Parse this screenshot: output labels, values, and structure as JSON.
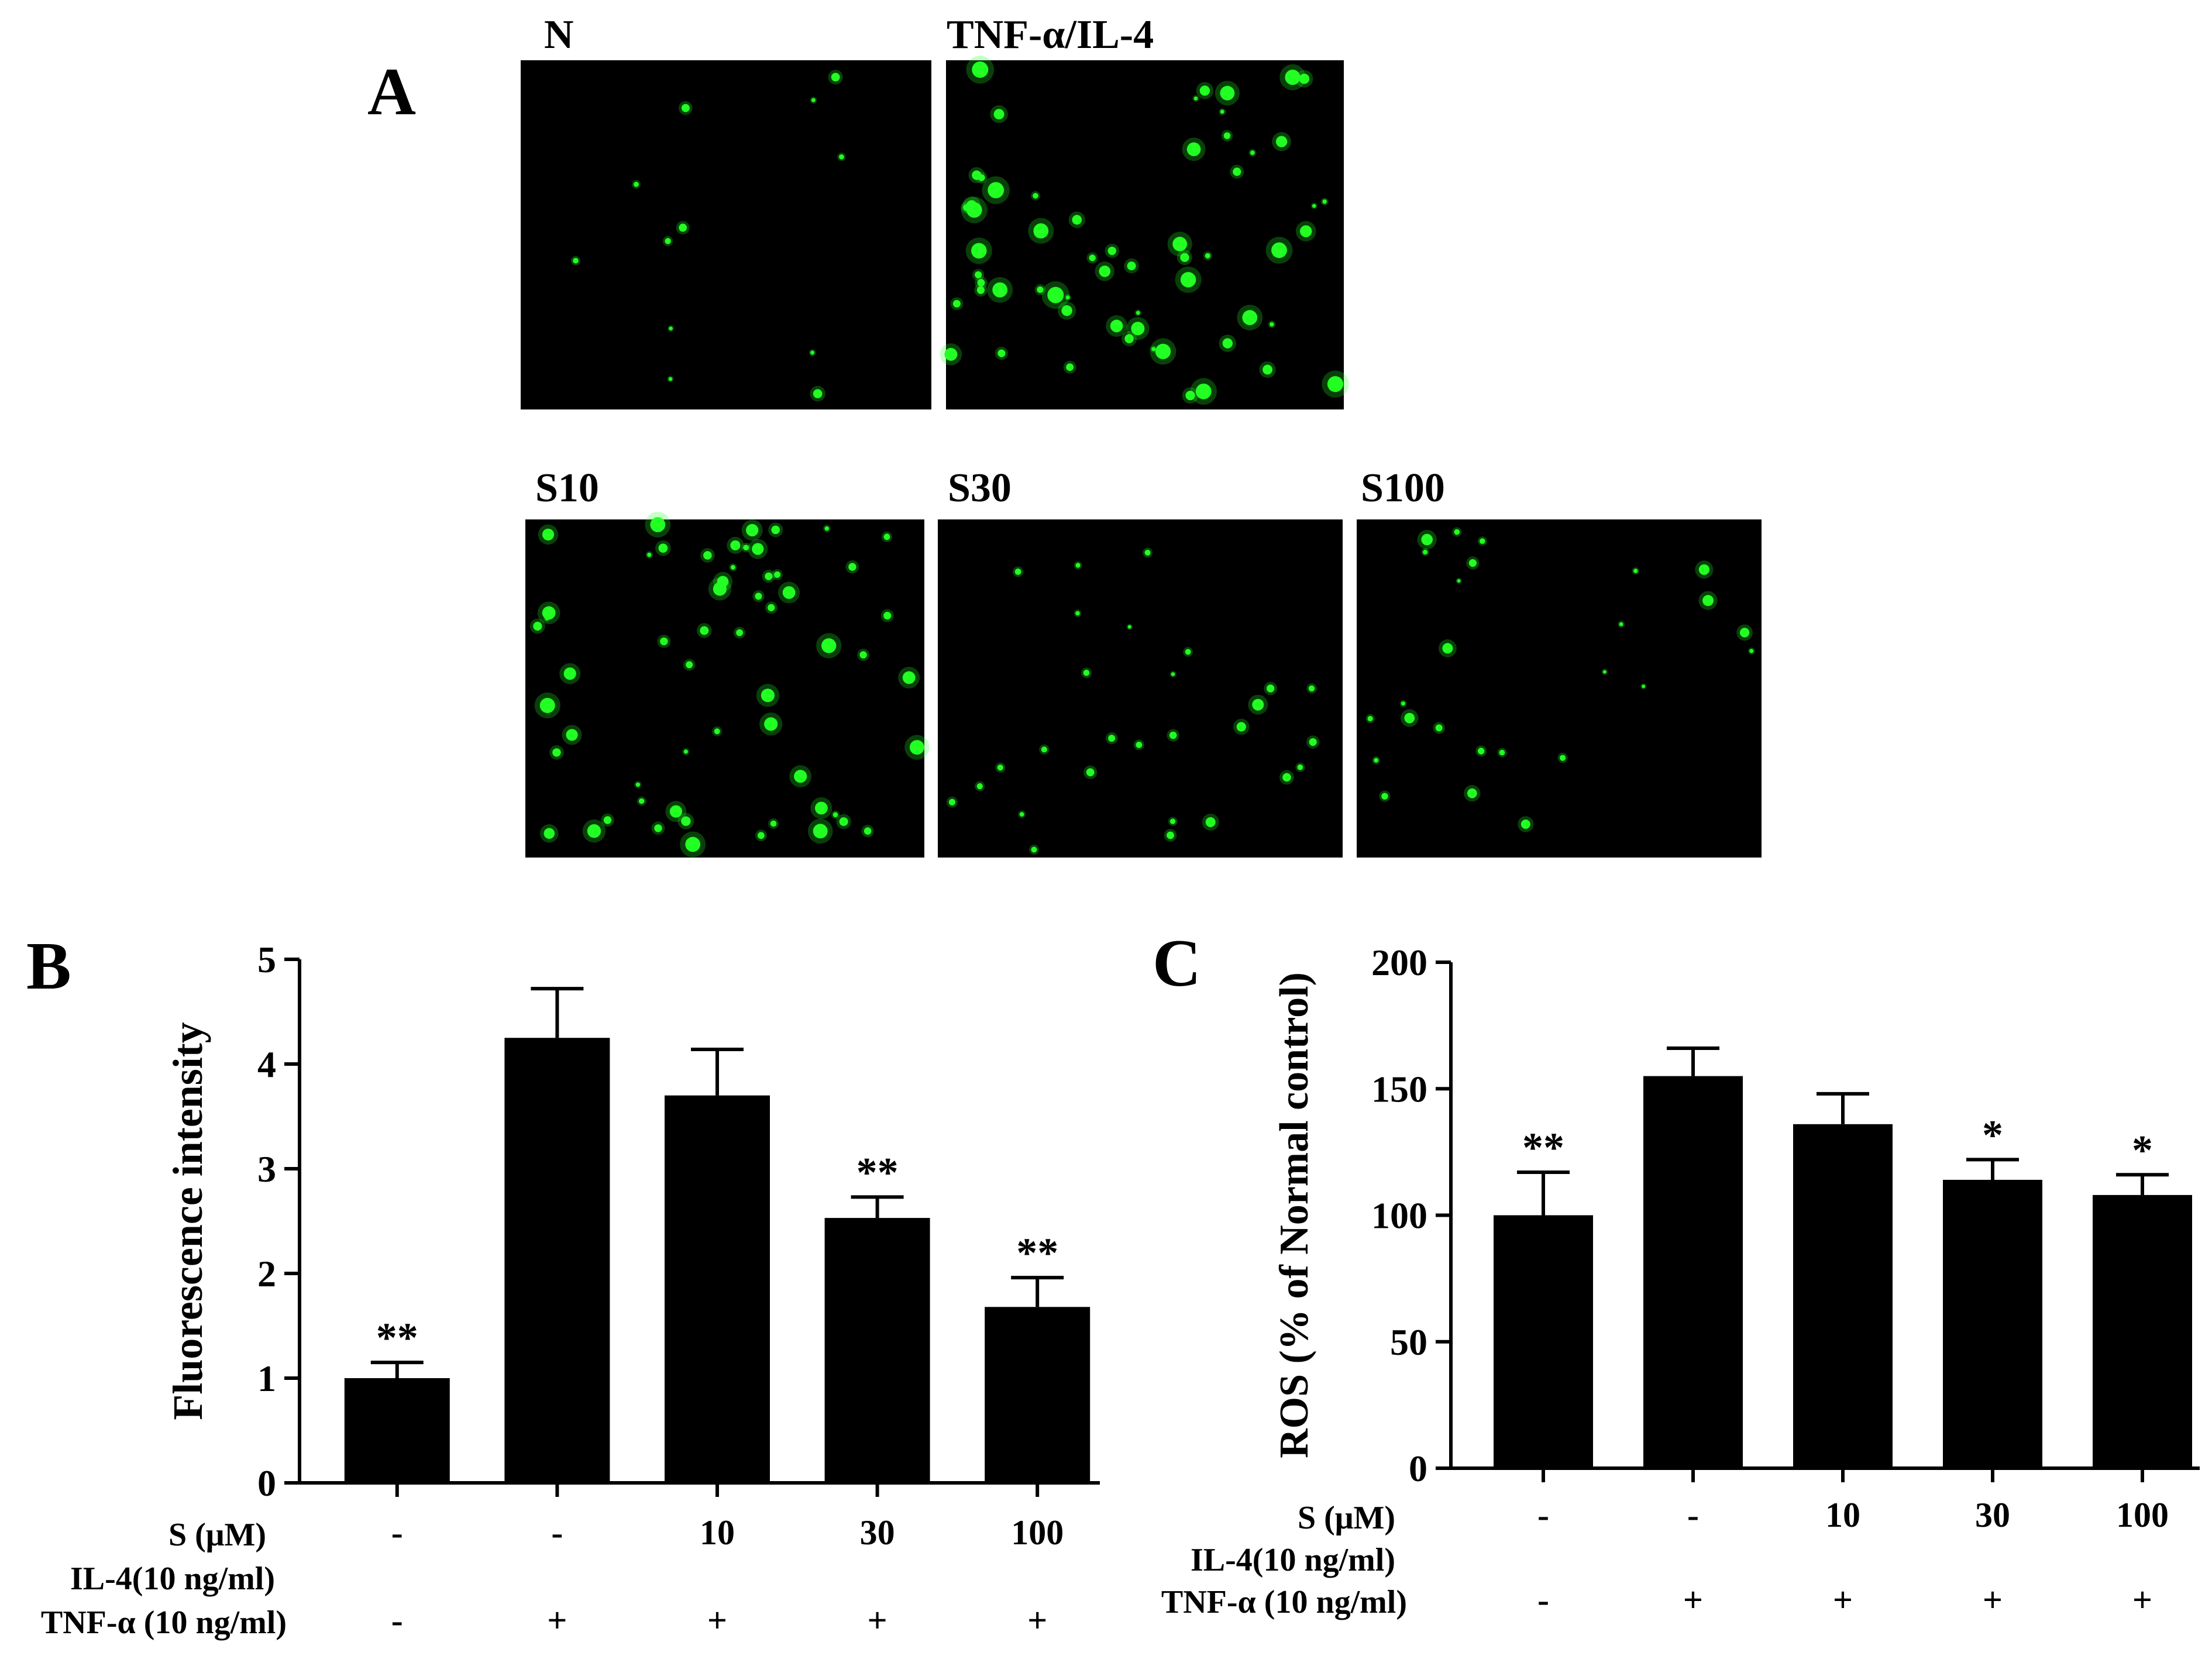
{
  "panel_a": {
    "letter": "A",
    "images": [
      {
        "label": "N",
        "glow": "#22ff22"
      },
      {
        "label": "TNF-α/IL-4",
        "glow": "#22ff22"
      },
      {
        "label": "S10",
        "glow": "#22ff22"
      },
      {
        "label": "S30",
        "glow": "#22ff22"
      },
      {
        "label": "S100",
        "glow": "#22ff22"
      }
    ]
  },
  "treatment_rows": {
    "s_label": "S (μM)",
    "il4_label": "IL-4(10 ng/ml)",
    "tnf_label": "TNF-α (10 ng/ml)",
    "s_values": [
      "-",
      "-",
      "10",
      "30",
      "100"
    ],
    "tnf_values": [
      "-",
      "+",
      "+",
      "+",
      "+"
    ]
  },
  "chart_data": [
    {
      "panel": "B",
      "type": "bar",
      "categories": [
        "",
        "",
        "",
        "",
        ""
      ],
      "values": [
        1.0,
        4.25,
        3.7,
        2.53,
        1.68
      ],
      "errors": [
        0.15,
        0.47,
        0.44,
        0.2,
        0.28
      ],
      "annotations": [
        "**",
        "",
        "",
        "**",
        "**"
      ],
      "xlabel": "",
      "ylabel": "Fluorescence intensity",
      "ylim": [
        0,
        5
      ],
      "yticks": [
        0,
        1,
        2,
        3,
        4,
        5
      ],
      "bar_color": "#000000",
      "grid": false
    },
    {
      "panel": "C",
      "type": "bar",
      "categories": [
        "",
        "",
        "",
        "",
        ""
      ],
      "values": [
        100,
        155,
        136,
        114,
        108
      ],
      "errors": [
        17,
        11,
        12,
        8,
        8
      ],
      "annotations": [
        "**",
        "",
        "",
        "*",
        "*"
      ],
      "xlabel": "",
      "ylabel": "ROS (% of Normal control)",
      "ylim": [
        0,
        200
      ],
      "yticks": [
        0,
        50,
        100,
        150,
        200
      ],
      "bar_color": "#000000",
      "grid": false
    }
  ]
}
